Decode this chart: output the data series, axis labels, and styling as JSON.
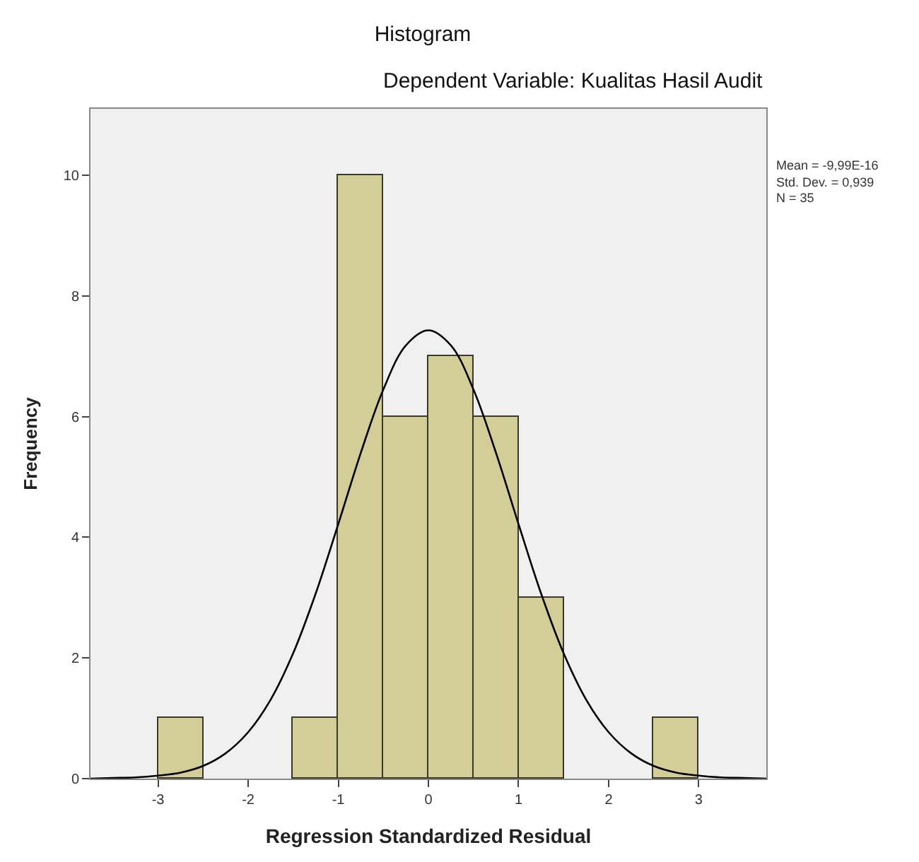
{
  "chart_data": {
    "type": "histogram",
    "title": "Histogram",
    "subtitle": "Dependent Variable: Kualitas Hasil Audit",
    "xlabel": "Regression Standardized Residual",
    "ylabel": "Frequency",
    "bins": [
      -3,
      -2.5,
      -2,
      -1.5,
      -1,
      -0.5,
      0,
      0.5,
      1,
      1.5,
      2,
      2.5,
      3
    ],
    "series": [
      {
        "color": "#d3ce97",
        "values": [
          1,
          0,
          0,
          1,
          10,
          6,
          7,
          6,
          3,
          0,
          0,
          1
        ]
      },
      {
        "type": "line",
        "color": "#000000",
        "x": [
          -3.75,
          -3.5,
          -3.25,
          -3,
          -2.75,
          -2.5,
          -2.25,
          -2,
          -1.75,
          -1.5,
          -1.25,
          -1,
          -0.75,
          -0.5,
          -0.25,
          0,
          0.25,
          0.5,
          0.75,
          1,
          1.25,
          1.5,
          1.75,
          2,
          2.25,
          2.5,
          2.75,
          3,
          3.25,
          3.5,
          3.75
        ],
        "values": [
          0,
          0.01,
          0.02,
          0.05,
          0.1,
          0.21,
          0.42,
          0.77,
          1.31,
          2.08,
          3.07,
          4.22,
          5.4,
          6.45,
          7.18,
          7.43,
          7.18,
          6.45,
          5.4,
          4.22,
          3.07,
          2.08,
          1.31,
          0.77,
          0.42,
          0.21,
          0.1,
          0.05,
          0.02,
          0.01,
          0
        ]
      }
    ],
    "annotations": [
      "Mean = -9,99E-16",
      "Std. Dev. = 0,939",
      "N = 35"
    ],
    "xlim": [
      -3.75,
      3.75
    ],
    "xticks": [
      -3,
      -2,
      -1,
      0,
      1,
      2,
      3
    ],
    "ylim": [
      0,
      11.1
    ],
    "yticks": [
      0,
      2,
      4,
      6,
      8,
      10
    ],
    "grid": false
  }
}
